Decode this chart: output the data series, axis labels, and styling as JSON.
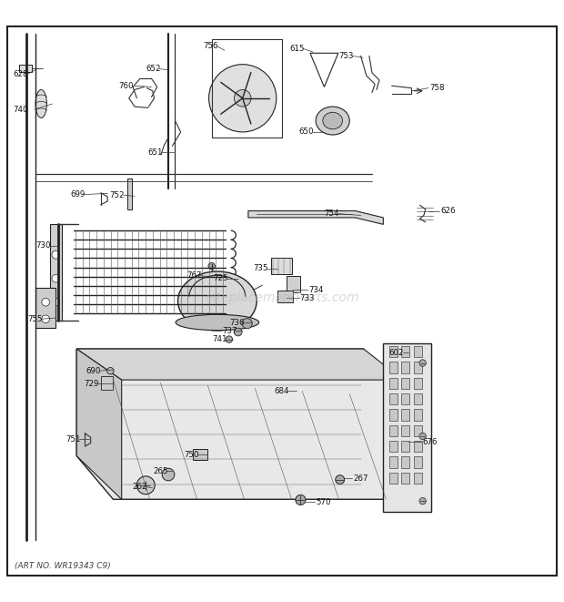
{
  "background_color": "#ffffff",
  "border_color": "#000000",
  "watermark": "eReplacementParts.com",
  "footer_text": "(ART NO. WR19343 C9)",
  "fig_width": 6.2,
  "fig_height": 6.61
}
